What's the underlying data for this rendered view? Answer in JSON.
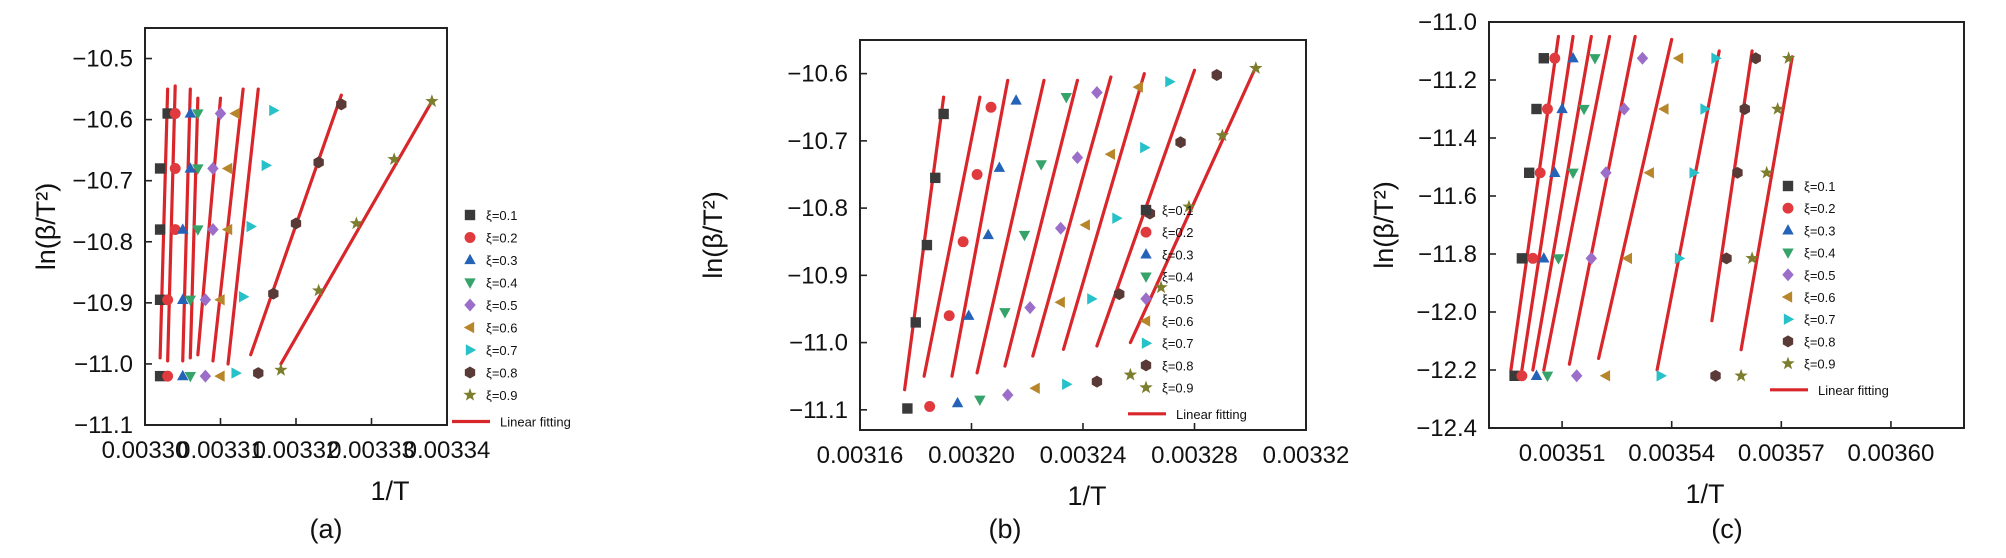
{
  "colors": {
    "fit": "#d9262b",
    "s1": "#3a3a3a",
    "s2": "#e03a3e",
    "s3": "#2563b8",
    "s4": "#35a36a",
    "s5": "#9b6fc9",
    "s6": "#b8862a",
    "s7": "#27c1c9",
    "s8": "#5a3a36",
    "s9": "#7d7d2e"
  },
  "markers": {
    "s1": "square",
    "s2": "circle",
    "s3": "triangle-up",
    "s4": "triangle-down",
    "s5": "diamond",
    "s6": "triangle-left",
    "s7": "triangle-right",
    "s8": "hexagon",
    "s9": "star"
  },
  "chart_data": [
    {
      "id": "a",
      "type": "scatter",
      "panel_label": "(a)",
      "xlabel": "1/T",
      "ylabel": "ln(β/T²)",
      "xlim": [
        0.0033,
        0.00334
      ],
      "ylim": [
        -11.1,
        -10.45
      ],
      "xticks": [
        0.0033,
        0.00331,
        0.00332,
        0.00333,
        0.00334
      ],
      "xtick_labels": [
        "0.00330",
        "0.00331",
        "0.00332",
        "0.00333",
        "0.00334"
      ],
      "yticks": [
        -10.5,
        -10.6,
        -10.7,
        -10.8,
        -10.9,
        -11.0,
        -11.1
      ],
      "ytick_labels": [
        "−10.5",
        "−10.6",
        "−10.7",
        "−10.8",
        "−10.9",
        "−11.0",
        "−11.1"
      ],
      "legend_position": "right",
      "legend": [
        "ξ=0.1",
        "ξ=0.2",
        "ξ=0.3",
        "ξ=0.4",
        "ξ=0.5",
        "ξ=0.6",
        "ξ=0.7",
        "ξ=0.8",
        "ξ=0.9",
        "Linear fitting"
      ],
      "series": [
        {
          "name": "ξ=0.1",
          "x": [
            0.003302,
            0.003302,
            0.003302,
            0.003302,
            0.003303
          ],
          "y": [
            -11.02,
            -10.895,
            -10.78,
            -10.68,
            -10.59
          ]
        },
        {
          "name": "ξ=0.2",
          "x": [
            0.003303,
            0.003303,
            0.003304,
            0.003304,
            0.003304
          ],
          "y": [
            -11.02,
            -10.895,
            -10.78,
            -10.68,
            -10.59
          ]
        },
        {
          "name": "ξ=0.3",
          "x": [
            0.003305,
            0.003305,
            0.003305,
            0.003306,
            0.003306
          ],
          "y": [
            -11.02,
            -10.895,
            -10.78,
            -10.68,
            -10.59
          ]
        },
        {
          "name": "ξ=0.4",
          "x": [
            0.003306,
            0.003306,
            0.003307,
            0.003307,
            0.003307
          ],
          "y": [
            -11.02,
            -10.895,
            -10.78,
            -10.68,
            -10.59
          ]
        },
        {
          "name": "ξ=0.5",
          "x": [
            0.003308,
            0.003308,
            0.003309,
            0.003309,
            0.00331
          ],
          "y": [
            -11.02,
            -10.895,
            -10.78,
            -10.68,
            -10.59
          ]
        },
        {
          "name": "ξ=0.6",
          "x": [
            0.00331,
            0.00331,
            0.003311,
            0.003311,
            0.003312
          ],
          "y": [
            -11.02,
            -10.895,
            -10.78,
            -10.68,
            -10.59
          ]
        },
        {
          "name": "ξ=0.7",
          "x": [
            0.003312,
            0.003313,
            0.003314,
            0.003316,
            0.003317
          ],
          "y": [
            -11.015,
            -10.89,
            -10.775,
            -10.675,
            -10.585
          ]
        },
        {
          "name": "ξ=0.8",
          "x": [
            0.003315,
            0.003317,
            0.00332,
            0.003323,
            0.003326
          ],
          "y": [
            -11.015,
            -10.885,
            -10.77,
            -10.67,
            -10.575
          ]
        },
        {
          "name": "ξ=0.9",
          "x": [
            0.003318,
            0.003323,
            0.003328,
            0.003333,
            0.003338
          ],
          "y": [
            -11.01,
            -10.88,
            -10.77,
            -10.665,
            -10.57
          ]
        }
      ],
      "fits": [
        {
          "x": [
            0.003302,
            0.003303
          ],
          "y": [
            -10.99,
            -10.55
          ]
        },
        {
          "x": [
            0.003303,
            0.003304
          ],
          "y": [
            -10.995,
            -10.545
          ]
        },
        {
          "x": [
            0.003305,
            0.003306
          ],
          "y": [
            -10.995,
            -10.55
          ]
        },
        {
          "x": [
            0.003306,
            0.003307
          ],
          "y": [
            -10.99,
            -10.565
          ]
        },
        {
          "x": [
            0.003307,
            0.00331
          ],
          "y": [
            -10.985,
            -10.565
          ]
        },
        {
          "x": [
            0.003309,
            0.003313
          ],
          "y": [
            -10.995,
            -10.55
          ]
        },
        {
          "x": [
            0.003311,
            0.003315
          ],
          "y": [
            -11.0,
            -10.55
          ]
        },
        {
          "x": [
            0.003314,
            0.003326
          ],
          "y": [
            -10.985,
            -10.56
          ]
        },
        {
          "x": [
            0.003318,
            0.003338
          ],
          "y": [
            -11.0,
            -10.57
          ]
        }
      ]
    },
    {
      "id": "b",
      "type": "scatter",
      "panel_label": "(b)",
      "xlabel": "1/T",
      "ylabel": "ln(β/T²)",
      "xlim": [
        0.00316,
        0.00332
      ],
      "ylim": [
        -11.13,
        -10.55
      ],
      "xticks": [
        0.00316,
        0.0032,
        0.00324,
        0.00328,
        0.00332
      ],
      "xtick_labels": [
        "0.00316",
        "0.00320",
        "0.00324",
        "0.00328",
        "0.00332"
      ],
      "yticks": [
        -10.6,
        -10.7,
        -10.8,
        -10.9,
        -11.0,
        -11.1
      ],
      "ytick_labels": [
        "−10.6",
        "−10.7",
        "−10.8",
        "−10.9",
        "−11.0",
        "−11.1"
      ],
      "legend_position": "right",
      "legend": [
        "ξ=0.1",
        "ξ=0.2",
        "ξ=0.3",
        "ξ=0.4",
        "ξ=0.5",
        "ξ=0.6",
        "ξ=0.7",
        "ξ=0.8",
        "ξ=0.9",
        "Linear fitting"
      ],
      "series": [
        {
          "name": "ξ=0.1",
          "x": [
            0.003177,
            0.00318,
            0.003184,
            0.003187,
            0.00319
          ],
          "y": [
            -11.098,
            -10.97,
            -10.855,
            -10.755,
            -10.66
          ]
        },
        {
          "name": "ξ=0.2",
          "x": [
            0.003185,
            0.003192,
            0.003197,
            0.003202,
            0.003207
          ],
          "y": [
            -11.095,
            -10.96,
            -10.85,
            -10.75,
            -10.65
          ]
        },
        {
          "name": "ξ=0.3",
          "x": [
            0.003195,
            0.003199,
            0.003206,
            0.00321,
            0.003216
          ],
          "y": [
            -11.09,
            -10.96,
            -10.84,
            -10.74,
            -10.64
          ]
        },
        {
          "name": "ξ=0.4",
          "x": [
            0.003203,
            0.003212,
            0.003219,
            0.003225,
            0.003234
          ],
          "y": [
            -11.085,
            -10.955,
            -10.84,
            -10.735,
            -10.635
          ]
        },
        {
          "name": "ξ=0.5",
          "x": [
            0.003213,
            0.003221,
            0.003232,
            0.003238,
            0.003245
          ],
          "y": [
            -11.078,
            -10.948,
            -10.83,
            -10.725,
            -10.628
          ]
        },
        {
          "name": "ξ=0.6",
          "x": [
            0.003223,
            0.003232,
            0.003241,
            0.00325,
            0.00326
          ],
          "y": [
            -11.068,
            -10.94,
            -10.825,
            -10.72,
            -10.62
          ]
        },
        {
          "name": "ξ=0.7",
          "x": [
            0.003234,
            0.003243,
            0.003252,
            0.003262,
            0.003271
          ],
          "y": [
            -11.062,
            -10.935,
            -10.815,
            -10.71,
            -10.612
          ]
        },
        {
          "name": "ξ=0.8",
          "x": [
            0.003245,
            0.003253,
            0.003264,
            0.003275,
            0.003288
          ],
          "y": [
            -11.058,
            -10.928,
            -10.808,
            -10.702,
            -10.602
          ]
        },
        {
          "name": "ξ=0.9",
          "x": [
            0.003257,
            0.003268,
            0.003278,
            0.00329,
            0.003302
          ],
          "y": [
            -11.048,
            -10.918,
            -10.798,
            -10.692,
            -10.592
          ]
        }
      ],
      "fits": [
        {
          "x": [
            0.003176,
            0.00319
          ],
          "y": [
            -11.07,
            -10.635
          ]
        },
        {
          "x": [
            0.003183,
            0.003203
          ],
          "y": [
            -11.05,
            -10.635
          ]
        },
        {
          "x": [
            0.003193,
            0.003213
          ],
          "y": [
            -11.05,
            -10.61
          ]
        },
        {
          "x": [
            0.003202,
            0.003226
          ],
          "y": [
            -11.045,
            -10.61
          ]
        },
        {
          "x": [
            0.003212,
            0.003238
          ],
          "y": [
            -11.035,
            -10.61
          ]
        },
        {
          "x": [
            0.003222,
            0.00325
          ],
          "y": [
            -11.02,
            -10.605
          ]
        },
        {
          "x": [
            0.003233,
            0.003262
          ],
          "y": [
            -11.01,
            -10.6
          ]
        },
        {
          "x": [
            0.003245,
            0.00328
          ],
          "y": [
            -11.005,
            -10.595
          ]
        },
        {
          "x": [
            0.003257,
            0.003302
          ],
          "y": [
            -11.0,
            -10.59
          ]
        }
      ]
    },
    {
      "id": "c",
      "type": "scatter",
      "panel_label": "(c)",
      "xlabel": "1/T",
      "ylabel": "ln(β/T²)",
      "xlim": [
        0.00349,
        0.00362
      ],
      "ylim": [
        -12.4,
        -11.0
      ],
      "xticks": [
        0.00351,
        0.00354,
        0.00357,
        0.0036
      ],
      "xtick_labels": [
        "0.00351",
        "0.00354",
        "0.00357",
        "0.00360"
      ],
      "yticks": [
        -11.0,
        -11.2,
        -11.4,
        -11.6,
        -11.8,
        -12.0,
        -12.2,
        -12.4
      ],
      "ytick_labels": [
        "−11.0",
        "−11.2",
        "−11.4",
        "−11.6",
        "−11.8",
        "−12.0",
        "−12.2",
        "−12.4"
      ],
      "legend_position": "right",
      "legend": [
        "ξ=0.1",
        "ξ=0.2",
        "ξ=0.3",
        "ξ=0.4",
        "ξ=0.5",
        "ξ=0.6",
        "ξ=0.7",
        "ξ=0.8",
        "ξ=0.9",
        "Linear fitting"
      ],
      "series": [
        {
          "name": "ξ=0.1",
          "x": [
            0.003497,
            0.003499,
            0.003501,
            0.003503,
            0.003505
          ],
          "y": [
            -12.22,
            -11.815,
            -11.52,
            -11.3,
            -11.125
          ]
        },
        {
          "name": "ξ=0.2",
          "x": [
            0.003499,
            0.003502,
            0.003504,
            0.003506,
            0.003508
          ],
          "y": [
            -12.22,
            -11.815,
            -11.52,
            -11.3,
            -11.125
          ]
        },
        {
          "name": "ξ=0.3",
          "x": [
            0.003503,
            0.003505,
            0.003508,
            0.00351,
            0.003513
          ],
          "y": [
            -12.22,
            -11.815,
            -11.52,
            -11.3,
            -11.125
          ]
        },
        {
          "name": "ξ=0.4",
          "x": [
            0.003506,
            0.003509,
            0.003513,
            0.003516,
            0.003519
          ],
          "y": [
            -12.22,
            -11.815,
            -11.52,
            -11.3,
            -11.125
          ]
        },
        {
          "name": "ξ=0.5",
          "x": [
            0.003514,
            0.003518,
            0.003522,
            0.003527,
            0.003532
          ],
          "y": [
            -12.22,
            -11.815,
            -11.52,
            -11.3,
            -11.125
          ]
        },
        {
          "name": "ξ=0.6",
          "x": [
            0.003522,
            0.003528,
            0.003534,
            0.003538,
            0.003542
          ],
          "y": [
            -12.22,
            -11.815,
            -11.52,
            -11.3,
            -11.125
          ]
        },
        {
          "name": "ξ=0.7",
          "x": [
            0.003537,
            0.003542,
            0.003546,
            0.003549,
            0.003552
          ],
          "y": [
            -12.22,
            -11.815,
            -11.52,
            -11.3,
            -11.125
          ]
        },
        {
          "name": "ξ=0.8",
          "x": [
            0.003552,
            0.003555,
            0.003558,
            0.00356,
            0.003563
          ],
          "y": [
            -12.22,
            -11.815,
            -11.52,
            -11.3,
            -11.125
          ]
        },
        {
          "name": "ξ=0.9",
          "x": [
            0.003559,
            0.003562,
            0.003566,
            0.003569,
            0.003572
          ],
          "y": [
            -12.22,
            -11.815,
            -11.52,
            -11.3,
            -11.125
          ]
        }
      ],
      "fits": [
        {
          "x": [
            0.003496,
            0.003509
          ],
          "y": [
            -12.2,
            -11.05
          ]
        },
        {
          "x": [
            0.003499,
            0.003513
          ],
          "y": [
            -12.2,
            -11.05
          ]
        },
        {
          "x": [
            0.003502,
            0.003518
          ],
          "y": [
            -12.2,
            -11.05
          ]
        },
        {
          "x": [
            0.003505,
            0.003523
          ],
          "y": [
            -12.2,
            -11.05
          ]
        },
        {
          "x": [
            0.003512,
            0.00353
          ],
          "y": [
            -12.18,
            -11.05
          ]
        },
        {
          "x": [
            0.00352,
            0.00354
          ],
          "y": [
            -12.16,
            -11.06
          ]
        },
        {
          "x": [
            0.003536,
            0.003553
          ],
          "y": [
            -12.2,
            -11.1
          ]
        },
        {
          "x": [
            0.003551,
            0.003562
          ],
          "y": [
            -12.03,
            -11.1
          ]
        },
        {
          "x": [
            0.003559,
            0.003573
          ],
          "y": [
            -12.13,
            -11.12
          ]
        }
      ]
    }
  ]
}
